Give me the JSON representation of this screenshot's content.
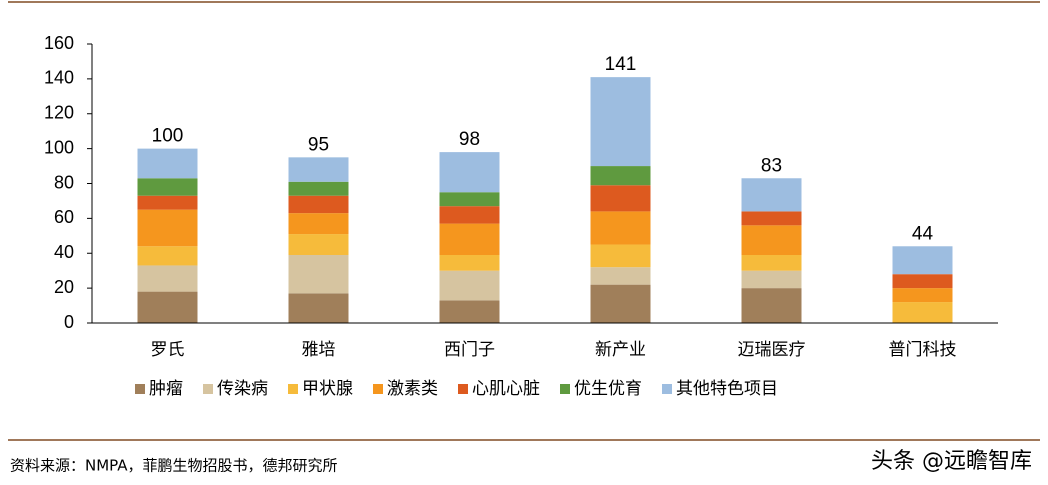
{
  "chart_data": {
    "type": "stacked-bar",
    "categories": [
      "罗氏",
      "雅培",
      "西门子",
      "新产业",
      "迈瑞医疗",
      "普门科技"
    ],
    "series": [
      {
        "name": "肿瘤",
        "color": "#a07f5a",
        "values": [
          18,
          17,
          13,
          22,
          20,
          0
        ]
      },
      {
        "name": "传染病",
        "color": "#d6c4a0",
        "values": [
          15,
          22,
          17,
          10,
          10,
          0
        ]
      },
      {
        "name": "甲状腺",
        "color": "#f6bb3b",
        "values": [
          11,
          12,
          9,
          13,
          9,
          12
        ]
      },
      {
        "name": "激素类",
        "color": "#f5961e",
        "values": [
          21,
          12,
          18,
          19,
          17,
          8
        ]
      },
      {
        "name": "心肌心脏",
        "color": "#dd5a1f",
        "values": [
          8,
          10,
          10,
          15,
          8,
          8
        ]
      },
      {
        "name": "优生优育",
        "color": "#5f9a3f",
        "values": [
          10,
          8,
          8,
          11,
          0,
          0
        ]
      },
      {
        "name": "其他特色项目",
        "color": "#9dbde0",
        "values": [
          17,
          14,
          23,
          51,
          19,
          16
        ]
      }
    ],
    "totals": [
      100,
      95,
      98,
      141,
      83,
      44
    ],
    "ylim": [
      0,
      160
    ],
    "yticks": [
      0,
      20,
      40,
      60,
      80,
      100,
      120,
      140,
      160
    ],
    "source": "资料来源：NMPA，菲鹏生物招股书，德邦研究所",
    "watermark": "头条 @远瞻智库"
  }
}
